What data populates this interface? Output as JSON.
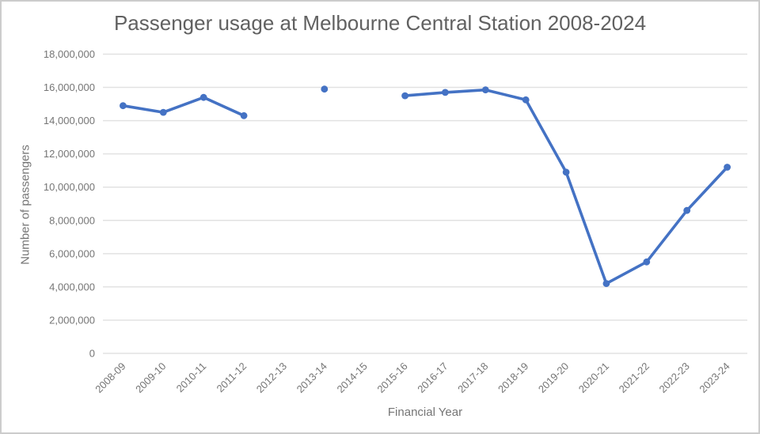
{
  "chart_data": {
    "type": "line",
    "title": "Passenger usage at Melbourne Central Station 2008-2024",
    "xlabel": "Financial Year",
    "ylabel": "Number of passengers",
    "categories": [
      "2008-09",
      "2009-10",
      "2010-11",
      "2011-12",
      "2012-13",
      "2013-14",
      "2014-15",
      "2015-16",
      "2016-17",
      "2017-18",
      "2018-19",
      "2019-20",
      "2020-21",
      "2021-22",
      "2022-23",
      "2023-24"
    ],
    "values": [
      14900000,
      14500000,
      15400000,
      14300000,
      null,
      15900000,
      null,
      15500000,
      15700000,
      15850000,
      15250000,
      10900000,
      4200000,
      5500000,
      8600000,
      11200000
    ],
    "ylim": [
      0,
      18000000
    ],
    "ytick_step": 2000000,
    "grid": "horizontal",
    "legend": "none",
    "notes": "no data points for 2012-13 and 2014-15; 2013-14 is an isolated marker",
    "colors": {
      "series": "#4472C4",
      "gridline": "#e2e2e2",
      "tick_text": "#757575",
      "axis_title_text": "#757575",
      "title_text": "#616161",
      "frame_border": "#cccccc",
      "background": "#ffffff"
    }
  }
}
